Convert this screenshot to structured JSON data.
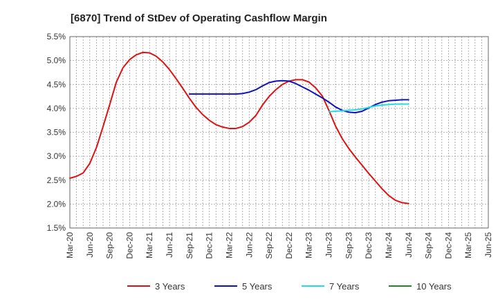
{
  "chart_data": {
    "type": "line",
    "title": "[6870]  Trend of StDev of Operating Cashflow Margin",
    "xlabel": "",
    "ylabel": "",
    "ylim": [
      1.5,
      5.5
    ],
    "yticks": [
      "1.5%",
      "2.0%",
      "2.5%",
      "3.0%",
      "3.5%",
      "4.0%",
      "4.5%",
      "5.0%",
      "5.5%"
    ],
    "xticks": [
      "Mar-20",
      "Jun-20",
      "Sep-20",
      "Dec-20",
      "Mar-21",
      "Jun-21",
      "Sep-21",
      "Dec-21",
      "Mar-22",
      "Jun-22",
      "Sep-22",
      "Dec-22",
      "Mar-23",
      "Jun-23",
      "Sep-23",
      "Dec-23",
      "Mar-24",
      "Jun-24",
      "Sep-24",
      "Dec-24",
      "Mar-25",
      "Jun-25"
    ],
    "grid": true,
    "legend_position": "bottom",
    "series": [
      {
        "name": "3 Years",
        "color": "#dd1111",
        "points": [
          [
            0,
            2.54
          ],
          [
            1,
            2.58
          ],
          [
            2,
            2.65
          ],
          [
            3,
            2.85
          ],
          [
            4,
            3.18
          ],
          [
            5,
            3.62
          ],
          [
            6,
            4.08
          ],
          [
            7,
            4.55
          ],
          [
            8,
            4.85
          ],
          [
            9,
            5.02
          ],
          [
            10,
            5.12
          ],
          [
            11,
            5.17
          ],
          [
            12,
            5.16
          ],
          [
            13,
            5.09
          ],
          [
            14,
            4.97
          ],
          [
            15,
            4.81
          ],
          [
            16,
            4.62
          ],
          [
            17,
            4.42
          ],
          [
            18,
            4.21
          ],
          [
            19,
            4.02
          ],
          [
            20,
            3.87
          ],
          [
            21,
            3.75
          ],
          [
            22,
            3.66
          ],
          [
            23,
            3.61
          ],
          [
            24,
            3.58
          ],
          [
            25,
            3.58
          ],
          [
            26,
            3.62
          ],
          [
            27,
            3.71
          ],
          [
            28,
            3.85
          ],
          [
            29,
            4.07
          ],
          [
            30,
            4.25
          ],
          [
            31,
            4.39
          ],
          [
            32,
            4.5
          ],
          [
            33,
            4.57
          ],
          [
            34,
            4.6
          ],
          [
            35,
            4.6
          ],
          [
            36,
            4.55
          ],
          [
            37,
            4.43
          ],
          [
            38,
            4.26
          ],
          [
            39,
            3.96
          ],
          [
            40,
            3.63
          ],
          [
            41,
            3.37
          ],
          [
            42,
            3.16
          ],
          [
            43,
            2.98
          ],
          [
            44,
            2.81
          ],
          [
            45,
            2.64
          ],
          [
            46,
            2.48
          ],
          [
            47,
            2.32
          ],
          [
            48,
            2.18
          ],
          [
            49,
            2.08
          ],
          [
            50,
            2.03
          ],
          [
            51,
            2.01
          ]
        ]
      },
      {
        "name": "5 Years",
        "color": "#1111bb",
        "points": [
          [
            18,
            4.3
          ],
          [
            19,
            4.3
          ],
          [
            20,
            4.3
          ],
          [
            21,
            4.3
          ],
          [
            22,
            4.3
          ],
          [
            23,
            4.3
          ],
          [
            24,
            4.3
          ],
          [
            25,
            4.3
          ],
          [
            26,
            4.31
          ],
          [
            27,
            4.34
          ],
          [
            28,
            4.39
          ],
          [
            29,
            4.47
          ],
          [
            30,
            4.54
          ],
          [
            31,
            4.57
          ],
          [
            32,
            4.58
          ],
          [
            33,
            4.57
          ],
          [
            34,
            4.52
          ],
          [
            35,
            4.45
          ],
          [
            36,
            4.38
          ],
          [
            37,
            4.3
          ],
          [
            38,
            4.22
          ],
          [
            39,
            4.13
          ],
          [
            40,
            4.03
          ],
          [
            41,
            3.96
          ],
          [
            42,
            3.92
          ],
          [
            43,
            3.91
          ],
          [
            44,
            3.94
          ],
          [
            45,
            4.01
          ],
          [
            46,
            4.08
          ],
          [
            47,
            4.13
          ],
          [
            48,
            4.16
          ],
          [
            49,
            4.17
          ],
          [
            50,
            4.18
          ],
          [
            51,
            4.18
          ]
        ]
      },
      {
        "name": "7 Years",
        "color": "#22dddd",
        "points": [
          [
            39,
            3.93
          ],
          [
            40,
            3.94
          ],
          [
            41,
            3.95
          ],
          [
            42,
            3.96
          ],
          [
            43,
            3.97
          ],
          [
            44,
            3.99
          ],
          [
            45,
            4.02
          ],
          [
            46,
            4.05
          ],
          [
            47,
            4.07
          ],
          [
            48,
            4.08
          ],
          [
            49,
            4.09
          ],
          [
            50,
            4.09
          ],
          [
            51,
            4.09
          ]
        ]
      },
      {
        "name": "10 Years",
        "color": "#228822",
        "points": []
      }
    ]
  }
}
